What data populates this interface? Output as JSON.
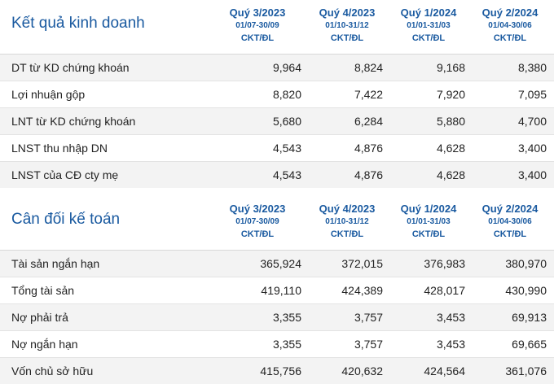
{
  "income": {
    "title": "Kết quả kinh doanh",
    "columns": [
      {
        "quarter": "Quý 3/2023",
        "dates": "01/07-30/09",
        "audit": "CKT/ĐL"
      },
      {
        "quarter": "Quý 4/2023",
        "dates": "01/10-31/12",
        "audit": "CKT/ĐL"
      },
      {
        "quarter": "Quý 1/2024",
        "dates": "01/01-31/03",
        "audit": "CKT/ĐL"
      },
      {
        "quarter": "Quý 2/2024",
        "dates": "01/04-30/06",
        "audit": "CKT/ĐL"
      }
    ],
    "rows": [
      {
        "label": "DT từ KD chứng khoán",
        "values": [
          "9,964",
          "8,824",
          "9,168",
          "8,380"
        ]
      },
      {
        "label": "Lợi nhuận gộp",
        "values": [
          "8,820",
          "7,422",
          "7,920",
          "7,095"
        ]
      },
      {
        "label": "LNT từ KD chứng khoán",
        "values": [
          "5,680",
          "6,284",
          "5,880",
          "4,700"
        ]
      },
      {
        "label": "LNST thu nhập DN",
        "values": [
          "4,543",
          "4,876",
          "4,628",
          "3,400"
        ]
      },
      {
        "label": "LNST của CĐ cty mẹ",
        "values": [
          "4,543",
          "4,876",
          "4,628",
          "3,400"
        ]
      }
    ]
  },
  "balance": {
    "title": "Cân đối kế toán",
    "columns": [
      {
        "quarter": "Quý 3/2023",
        "dates": "01/07-30/09",
        "audit": "CKT/ĐL"
      },
      {
        "quarter": "Quý 4/2023",
        "dates": "01/10-31/12",
        "audit": "CKT/ĐL"
      },
      {
        "quarter": "Quý 1/2024",
        "dates": "01/01-31/03",
        "audit": "CKT/ĐL"
      },
      {
        "quarter": "Quý 2/2024",
        "dates": "01/04-30/06",
        "audit": "CKT/ĐL"
      }
    ],
    "rows": [
      {
        "label": "Tài sản ngắn hạn",
        "values": [
          "365,924",
          "372,015",
          "376,983",
          "380,970"
        ]
      },
      {
        "label": "Tổng tài sản",
        "values": [
          "419,110",
          "424,389",
          "428,017",
          "430,990"
        ]
      },
      {
        "label": "Nợ phải trả",
        "values": [
          "3,355",
          "3,757",
          "3,453",
          "69,913"
        ]
      },
      {
        "label": "Nợ ngắn hạn",
        "values": [
          "3,355",
          "3,757",
          "3,453",
          "69,665"
        ]
      },
      {
        "label": "Vốn chủ sở hữu",
        "values": [
          "415,756",
          "420,632",
          "424,564",
          "361,076"
        ]
      }
    ]
  }
}
